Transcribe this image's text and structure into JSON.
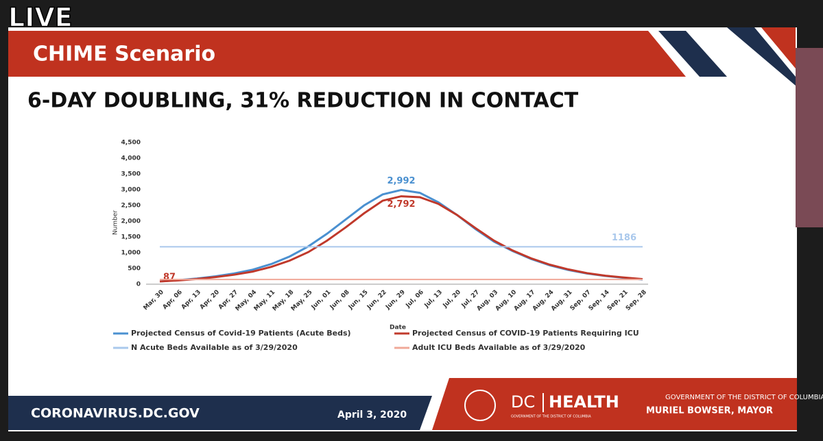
{
  "live": "LIVE",
  "header": "CHIME Scenario",
  "footer": {
    "url": "CORONAVIRUS.DC.GOV",
    "date": "April 3, 2020",
    "dc": "DC",
    "health": "HEALTH",
    "health_sub": "GOVERNMENT OF THE DISTRICT OF COLUMBIA",
    "government": "GOVERNMENT OF THE DISTRICT OF COLUMBIA",
    "mayor": "MURIEL BOWSER, MAYOR"
  },
  "chart_data": {
    "type": "line",
    "title": "6-DAY DOUBLING, 31% REDUCTION IN CONTACT",
    "y_label": "Number",
    "x_label": "Date",
    "categories": [
      "Mar, 30",
      "Apr, 06",
      "Apr, 13",
      "Apr, 20",
      "Apr, 27",
      "May, 04",
      "May, 11",
      "May, 18",
      "May, 25",
      "Jun, 01",
      "Jun, 08",
      "Jun, 15",
      "Jun, 22",
      "Jun, 29",
      "Jul, 06",
      "Jul, 13",
      "Jul, 20",
      "Jul, 27",
      "Aug, 03",
      "Aug, 10",
      "Aug, 17",
      "Aug, 24",
      "Aug, 31",
      "Sep, 07",
      "Sep, 14",
      "Sep, 21",
      "Sep, 28"
    ],
    "series": [
      {
        "name": "Projected Census of  Covid-19 Patients (Acute Beds)",
        "color": "#4a90d0",
        "values": [
          87,
          130,
          180,
          250,
          340,
          460,
          640,
          880,
          1200,
          1600,
          2050,
          2500,
          2850,
          2992,
          2900,
          2600,
          2200,
          1750,
          1350,
          1050,
          800,
          600,
          450,
          340,
          260,
          200,
          150
        ],
        "value_labels": [
          null,
          null,
          null,
          null,
          null,
          null,
          null,
          null,
          null,
          null,
          null,
          null,
          null,
          "2,992",
          null,
          null,
          null,
          null,
          null,
          null,
          null,
          null,
          null,
          null,
          null,
          null,
          null
        ]
      },
      {
        "name": "Projected Census of COVID-19 Patients Requiring ICU",
        "color": "#c0392b",
        "values": [
          87,
          120,
          165,
          225,
          300,
          400,
          550,
          750,
          1020,
          1380,
          1800,
          2250,
          2650,
          2792,
          2760,
          2550,
          2200,
          1780,
          1380,
          1070,
          820,
          620,
          470,
          350,
          270,
          210,
          160
        ],
        "value_labels": [
          "87",
          null,
          null,
          null,
          null,
          null,
          null,
          null,
          null,
          null,
          null,
          null,
          null,
          "2,792",
          null,
          null,
          null,
          null,
          null,
          null,
          null,
          null,
          null,
          null,
          null,
          null,
          null
        ]
      },
      {
        "name": "N Acute Beds Available as of 3/29/2020",
        "color": "#a9c8ec",
        "values": [
          1186,
          1186,
          1186,
          1186,
          1186,
          1186,
          1186,
          1186,
          1186,
          1186,
          1186,
          1186,
          1186,
          1186,
          1186,
          1186,
          1186,
          1186,
          1186,
          1186,
          1186,
          1186,
          1186,
          1186,
          1186,
          1186,
          1186
        ],
        "value_labels": [
          null,
          null,
          null,
          null,
          null,
          null,
          null,
          null,
          null,
          null,
          null,
          null,
          null,
          null,
          null,
          null,
          null,
          null,
          null,
          null,
          null,
          null,
          null,
          null,
          null,
          "1186",
          null
        ]
      },
      {
        "name": "Adult ICU Beds Available as of 3/29/2020",
        "color": "#f0a898",
        "values": [
          150,
          150,
          150,
          150,
          150,
          150,
          150,
          150,
          150,
          150,
          150,
          150,
          150,
          150,
          150,
          150,
          150,
          150,
          150,
          150,
          150,
          150,
          150,
          150,
          150,
          150,
          150
        ]
      }
    ],
    "ylim": [
      0,
      4500
    ],
    "yticks": [
      0,
      500,
      {
        "value": 1000,
        "label": "1,000"
      },
      {
        "value": 1500,
        "label": "1,500"
      },
      {
        "value": 2000,
        "label": "2,000"
      },
      {
        "value": 2500,
        "label": "2,500"
      },
      {
        "value": 3000,
        "label": "3,000"
      },
      {
        "value": 3500,
        "label": "3,500"
      },
      {
        "value": 4000,
        "label": "4,000"
      },
      {
        "value": 4500,
        "label": "4,500"
      }
    ],
    "grid": false,
    "legend": "bottom"
  }
}
